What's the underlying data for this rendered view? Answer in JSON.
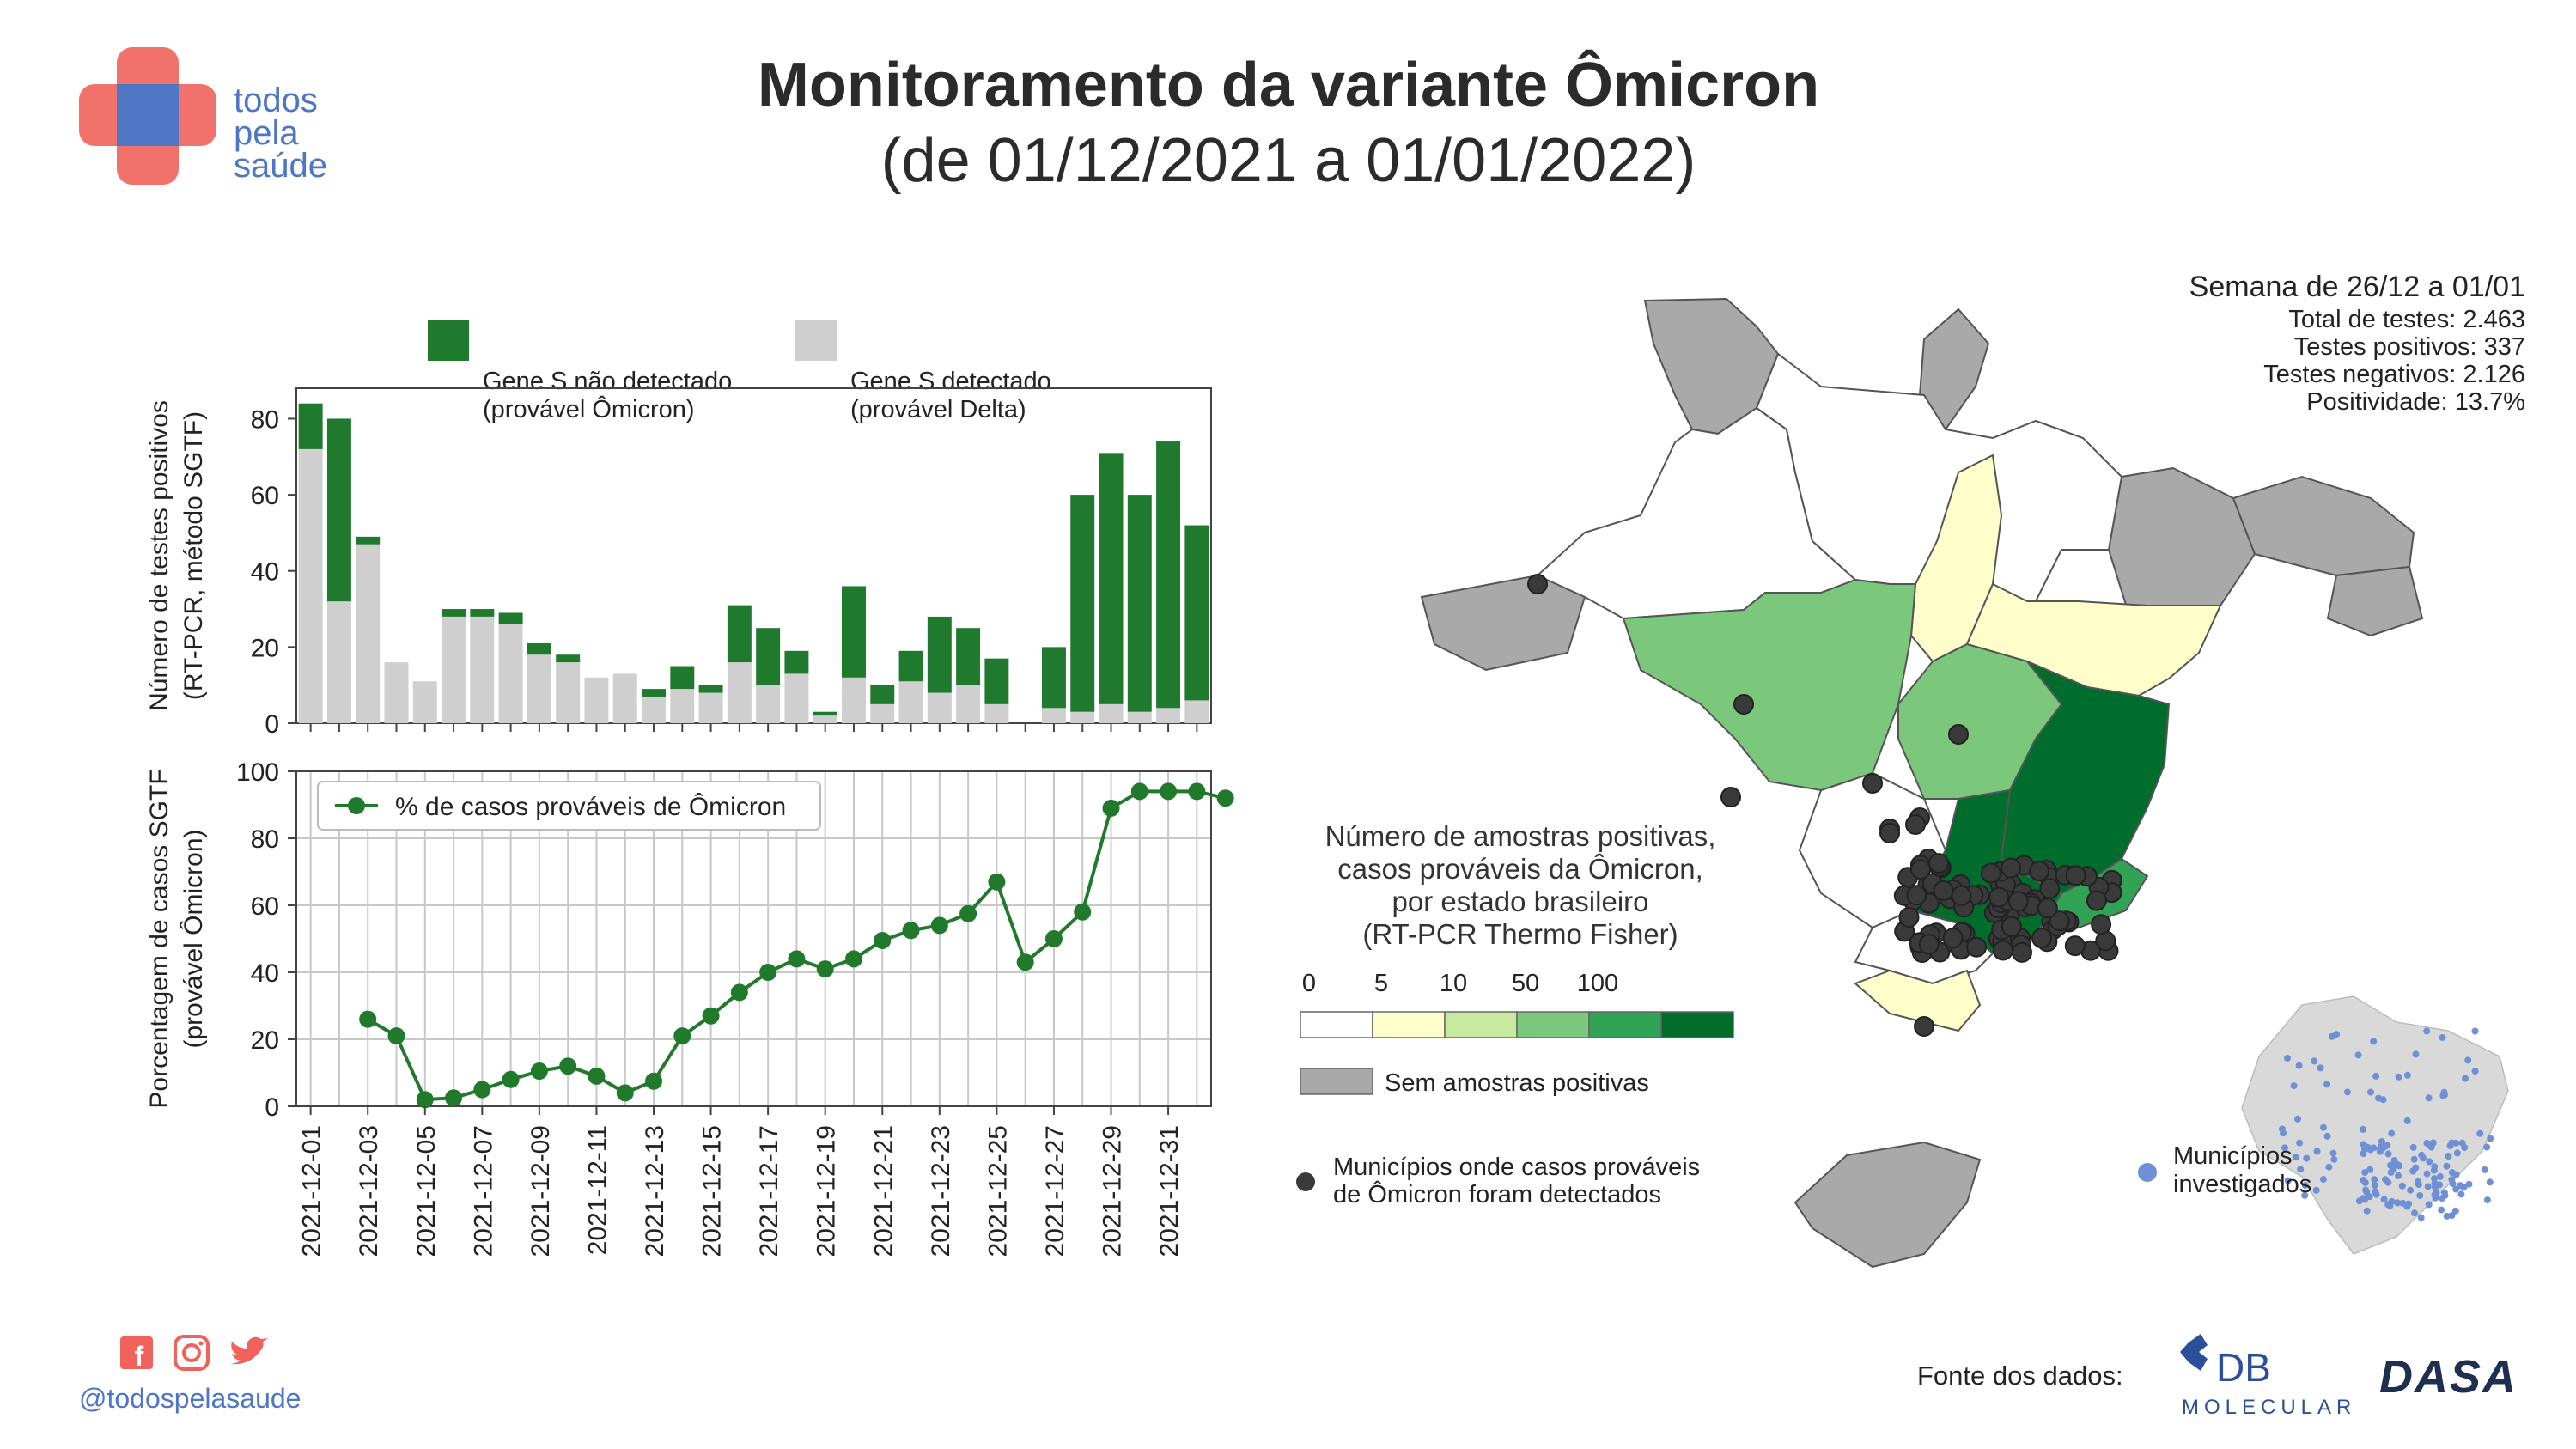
{
  "header": {
    "title": "Monitoramento da variante Ômicron",
    "subtitle": "(de 01/12/2021 a 01/01/2022)"
  },
  "logo": {
    "line1": "todos",
    "line2": "pela",
    "line3": "saúde"
  },
  "colors": {
    "omicron_green": "#1f7a2e",
    "delta_gray": "#cfcfcf",
    "line_green": "#217a2c",
    "map_gray": "#a9a9a9",
    "dot_dark": "#3a3a3a",
    "dot_blue": "#6f8fd6",
    "brand_blue": "#4f76c4",
    "brand_red": "#f0625b"
  },
  "chart_data": [
    {
      "type": "bar",
      "stacked": true,
      "ylabel": "Número de testes positivos (RT-PCR, método SGTF)",
      "ylim": [
        0,
        88
      ],
      "yticks": [
        0,
        20,
        40,
        60,
        80
      ],
      "categories": [
        "2021-12-01",
        "2021-12-02",
        "2021-12-03",
        "2021-12-04",
        "2021-12-05",
        "2021-12-06",
        "2021-12-07",
        "2021-12-08",
        "2021-12-09",
        "2021-12-10",
        "2021-12-11",
        "2021-12-12",
        "2021-12-13",
        "2021-12-14",
        "2021-12-15",
        "2021-12-16",
        "2021-12-17",
        "2021-12-18",
        "2021-12-19",
        "2021-12-20",
        "2021-12-21",
        "2021-12-22",
        "2021-12-23",
        "2021-12-24",
        "2021-12-25",
        "2021-12-26",
        "2021-12-27",
        "2021-12-28",
        "2021-12-29",
        "2021-12-30",
        "2021-12-31",
        "2022-01-01"
      ],
      "series": [
        {
          "name": "Gene S detectado (provável Delta)",
          "color": "#cfcfcf",
          "values": [
            72,
            32,
            47,
            16,
            11,
            28,
            28,
            26,
            18,
            16,
            12,
            13,
            7,
            9,
            8,
            16,
            10,
            13,
            2,
            12,
            5,
            11,
            8,
            10,
            5,
            0,
            4,
            3,
            5,
            3,
            4,
            6
          ]
        },
        {
          "name": "Gene S não detectado (provável Ômicron)",
          "color": "#1f7a2e",
          "values": [
            12,
            48,
            2,
            0,
            0,
            2,
            2,
            3,
            3,
            2,
            0,
            0,
            2,
            6,
            2,
            15,
            15,
            6,
            1,
            24,
            5,
            8,
            20,
            15,
            12,
            0,
            16,
            57,
            66,
            57,
            70,
            46
          ]
        }
      ],
      "legend": [
        {
          "line1": "Gene S não detectado",
          "line2": "(provável Ômicron)"
        },
        {
          "line1": "Gene S detectado",
          "line2": "(provável Delta)"
        }
      ]
    },
    {
      "type": "line",
      "ylabel": "Porcentagem de casos SGTF (provável Ômicron)",
      "ylim": [
        0,
        100
      ],
      "yticks": [
        0,
        20,
        40,
        60,
        80,
        100
      ],
      "legend": "% de casos prováveis de Ômicron",
      "x": [
        "2021-12-03",
        "2021-12-04",
        "2021-12-05",
        "2021-12-06",
        "2021-12-07",
        "2021-12-08",
        "2021-12-09",
        "2021-12-10",
        "2021-12-11",
        "2021-12-12",
        "2021-12-13",
        "2021-12-14",
        "2021-12-15",
        "2021-12-16",
        "2021-12-17",
        "2021-12-18",
        "2021-12-19",
        "2021-12-20",
        "2021-12-21",
        "2021-12-22",
        "2021-12-23",
        "2021-12-24",
        "2021-12-25",
        "2021-12-26",
        "2021-12-27",
        "2021-12-28",
        "2021-12-29",
        "2021-12-30",
        "2021-12-31",
        "2022-01-01",
        "2022-01-02"
      ],
      "y": [
        26,
        21,
        2,
        2.5,
        5,
        8,
        10.5,
        12,
        9,
        4,
        7.5,
        21,
        27,
        34,
        40,
        44,
        41,
        44,
        49.5,
        52.5,
        54,
        57.5,
        67,
        43,
        50,
        58,
        89,
        94,
        94,
        94,
        92
      ],
      "xtick_labels": [
        "2021-12-01",
        "2021-12-03",
        "2021-12-05",
        "2021-12-07",
        "2021-12-09",
        "2021-12-11",
        "2021-12-13",
        "2021-12-15",
        "2021-12-17",
        "2021-12-19",
        "2021-12-21",
        "2021-12-23",
        "2021-12-25",
        "2021-12-27",
        "2021-12-29",
        "2021-12-31"
      ]
    }
  ],
  "week_summary": {
    "title": "Semana de 26/12 a 01/01",
    "total": "Total de testes: 2.463",
    "positivos": "Testes positivos: 337",
    "negativos": "Testes negativos: 2.126",
    "positividade": "Positividade: 13.7%"
  },
  "map_legend": {
    "title_lines": [
      "Número de amostras positivas,",
      "casos prováveis da Ômicron,",
      "por estado brasileiro",
      "(RT-PCR Thermo Fisher)"
    ],
    "scale_labels": [
      "0",
      "5",
      "10",
      "50",
      "100"
    ],
    "scale_colors": [
      "#ffffff",
      "#fefecb",
      "#c7e9a0",
      "#7bc77c",
      "#31a354",
      "#006d2c"
    ],
    "no_samples": "Sem amostras positivas",
    "municipalities_detected": [
      "Municípios onde casos prováveis",
      "de Ômicron foram detectados"
    ],
    "municipalities_investigated": [
      "Municípios",
      "investigados"
    ]
  },
  "footer": {
    "handle": "@todospelasaude",
    "source_label": "Fonte dos dados:",
    "db_logo_text": "DB",
    "db_logo_sub": "MOLECULAR",
    "dasa_logo": "DASA"
  }
}
